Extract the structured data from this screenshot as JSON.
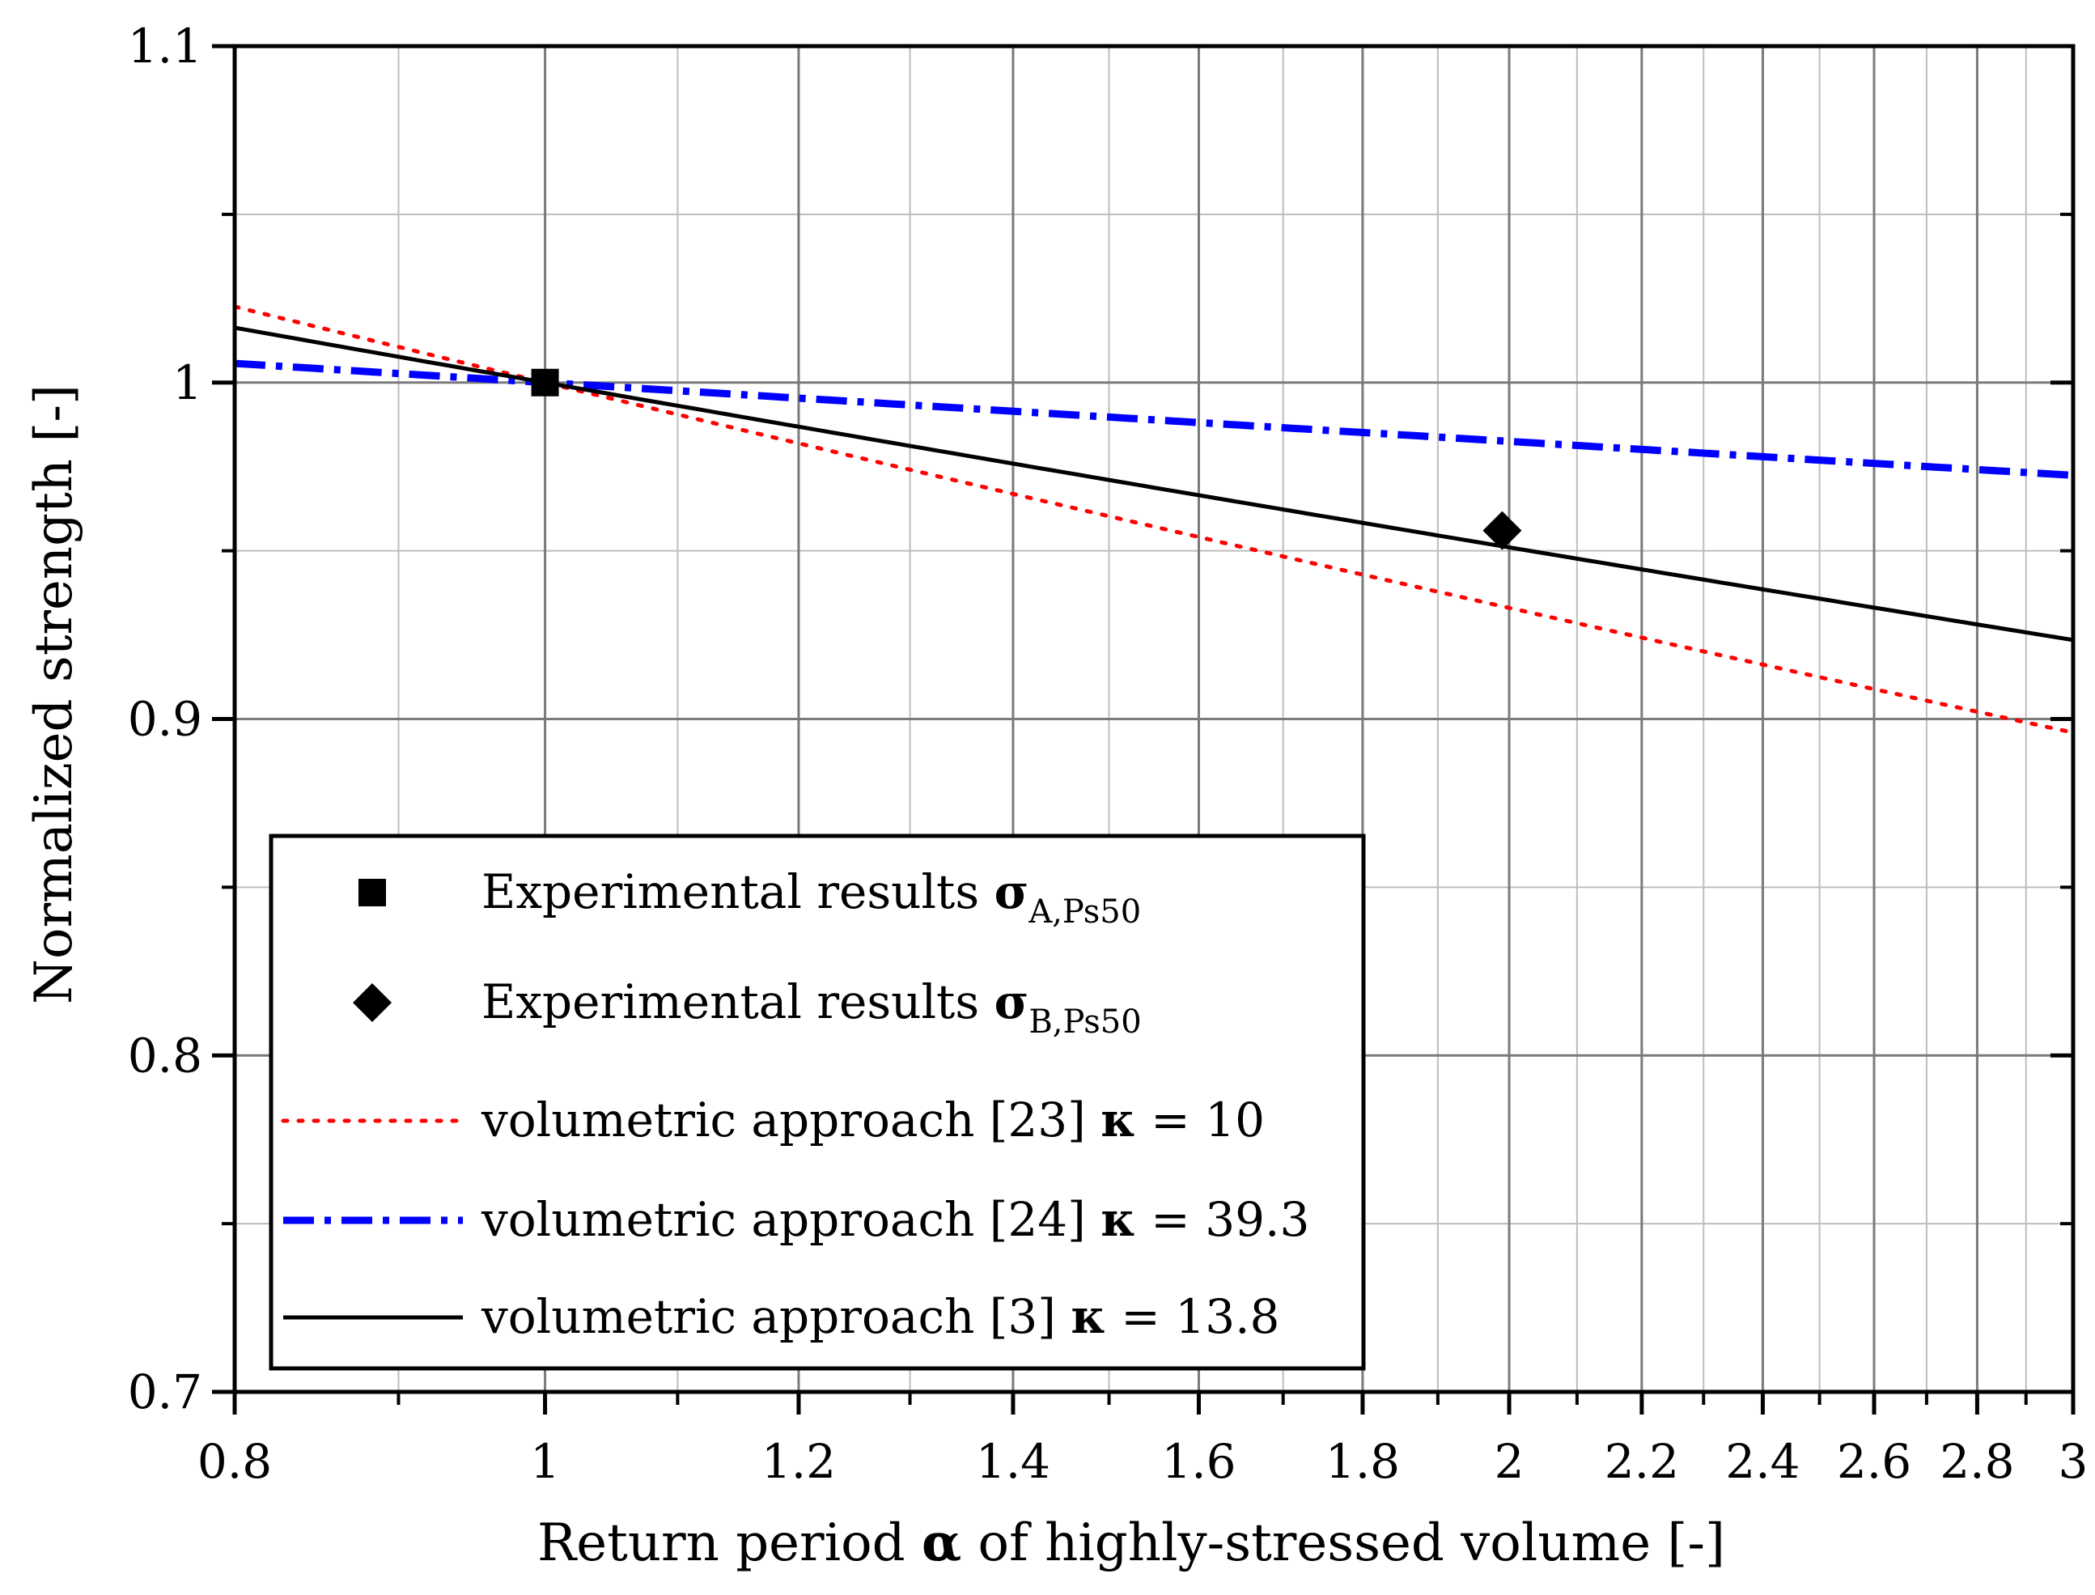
{
  "chart_data": {
    "type": "line",
    "title": "",
    "xlabel": {
      "pre": "Return period ",
      "sym": "α",
      "post": " of highly-stressed volume [-]"
    },
    "ylabel": "Normalized strength [-]",
    "x_scale": "log",
    "xlim": [
      0.8,
      3.0
    ],
    "ylim": [
      0.7,
      1.1
    ],
    "x_ticks": [
      0.8,
      1,
      1.2,
      1.4,
      1.6,
      1.8,
      2,
      2.2,
      2.4,
      2.6,
      2.8,
      3
    ],
    "x_tick_labels": [
      "0.8",
      "1",
      "1.2",
      "1.4",
      "1.6",
      "1.8",
      "2",
      "2.2",
      "2.4",
      "2.6",
      "2.8",
      "3"
    ],
    "x_minor_ticks": [
      0.9,
      1.1,
      1.3,
      1.5,
      1.7,
      1.9,
      2.1,
      2.3,
      2.5,
      2.7,
      2.9
    ],
    "y_ticks": [
      0.7,
      0.8,
      0.9,
      1.0,
      1.1
    ],
    "y_tick_labels": [
      "0.7",
      "0.8",
      "0.9",
      "1",
      "1.1"
    ],
    "y_minor_ticks": [
      0.75,
      0.85,
      0.95,
      1.05
    ],
    "grid": true,
    "points": [
      {
        "name": "Experimental results σA,Ps50",
        "marker": "square",
        "color": "#000000",
        "x": 1.0,
        "y": 1.0
      },
      {
        "name": "Experimental results σB,Ps50",
        "marker": "diamond",
        "color": "#000000",
        "x": 1.99,
        "y": 0.956
      }
    ],
    "series": [
      {
        "name": "volumetric approach [23] κ = 10",
        "kappa": 10,
        "style": "dotted",
        "color": "#ff0000",
        "x_start": 0.8,
        "x_end": 3.0
      },
      {
        "name": "volumetric approach [24] κ = 39.3",
        "kappa": 39.3,
        "style": "dashdot",
        "color": "#0000ff",
        "x_start": 0.8,
        "x_end": 3.0
      },
      {
        "name": "volumetric approach [3] κ = 13.8",
        "kappa": 13.8,
        "style": "solid",
        "color": "#000000",
        "x_start": 0.8,
        "x_end": 3.0
      }
    ],
    "legend": {
      "position": "bottom-left",
      "entries": [
        {
          "prefix": "Experimental results ",
          "sym": "σ",
          "sub": "A,Ps50",
          "marker": "square"
        },
        {
          "prefix": "Experimental results ",
          "sym": "σ",
          "sub": "B,Ps50",
          "marker": "diamond"
        },
        {
          "prefix": "volumetric approach [23] ",
          "sym": "κ",
          "suffix": " = 10",
          "line": "dotted"
        },
        {
          "prefix": "volumetric approach [24] ",
          "sym": "κ",
          "suffix": " = 39.3",
          "line": "dashdot"
        },
        {
          "prefix": "volumetric approach [3] ",
          "sym": "κ",
          "suffix": " = 13.8",
          "line": "solid"
        }
      ]
    }
  }
}
